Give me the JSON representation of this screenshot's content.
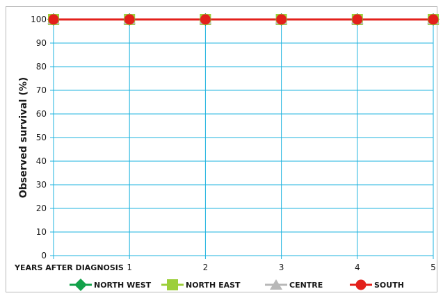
{
  "chart_data": {
    "type": "line",
    "title": "",
    "xlabel": "YEARS AFTER DIAGNOSIS",
    "ylabel": "Observed survival (%)",
    "x": [
      0,
      1,
      2,
      3,
      4,
      5
    ],
    "x_tick_labels": [
      "",
      "1",
      "2",
      "3",
      "4",
      "5"
    ],
    "ylim": [
      0,
      100
    ],
    "y_ticks": [
      0,
      10,
      20,
      30,
      40,
      50,
      60,
      70,
      80,
      90,
      100
    ],
    "grid": true,
    "legend_position": "bottom",
    "series": [
      {
        "name": "NORTH WEST",
        "values": [
          100,
          100,
          100,
          100,
          100,
          100
        ],
        "color": "#13a14a",
        "marker": "diamond"
      },
      {
        "name": "NORTH EAST",
        "values": [
          100,
          100,
          100,
          100,
          100,
          100
        ],
        "color": "#9ccf3a",
        "marker": "square"
      },
      {
        "name": "CENTRE",
        "values": [
          100,
          100,
          100,
          100,
          100,
          100
        ],
        "color": "#b8b8b8",
        "marker": "triangle"
      },
      {
        "name": "SOUTH",
        "values": [
          100,
          100,
          100,
          100,
          100,
          100
        ],
        "color": "#e3201b",
        "marker": "circle"
      }
    ],
    "colors": {
      "grid": "#1cb3df",
      "axis": "#1cb3df",
      "frame": "#b8b8b8"
    }
  }
}
